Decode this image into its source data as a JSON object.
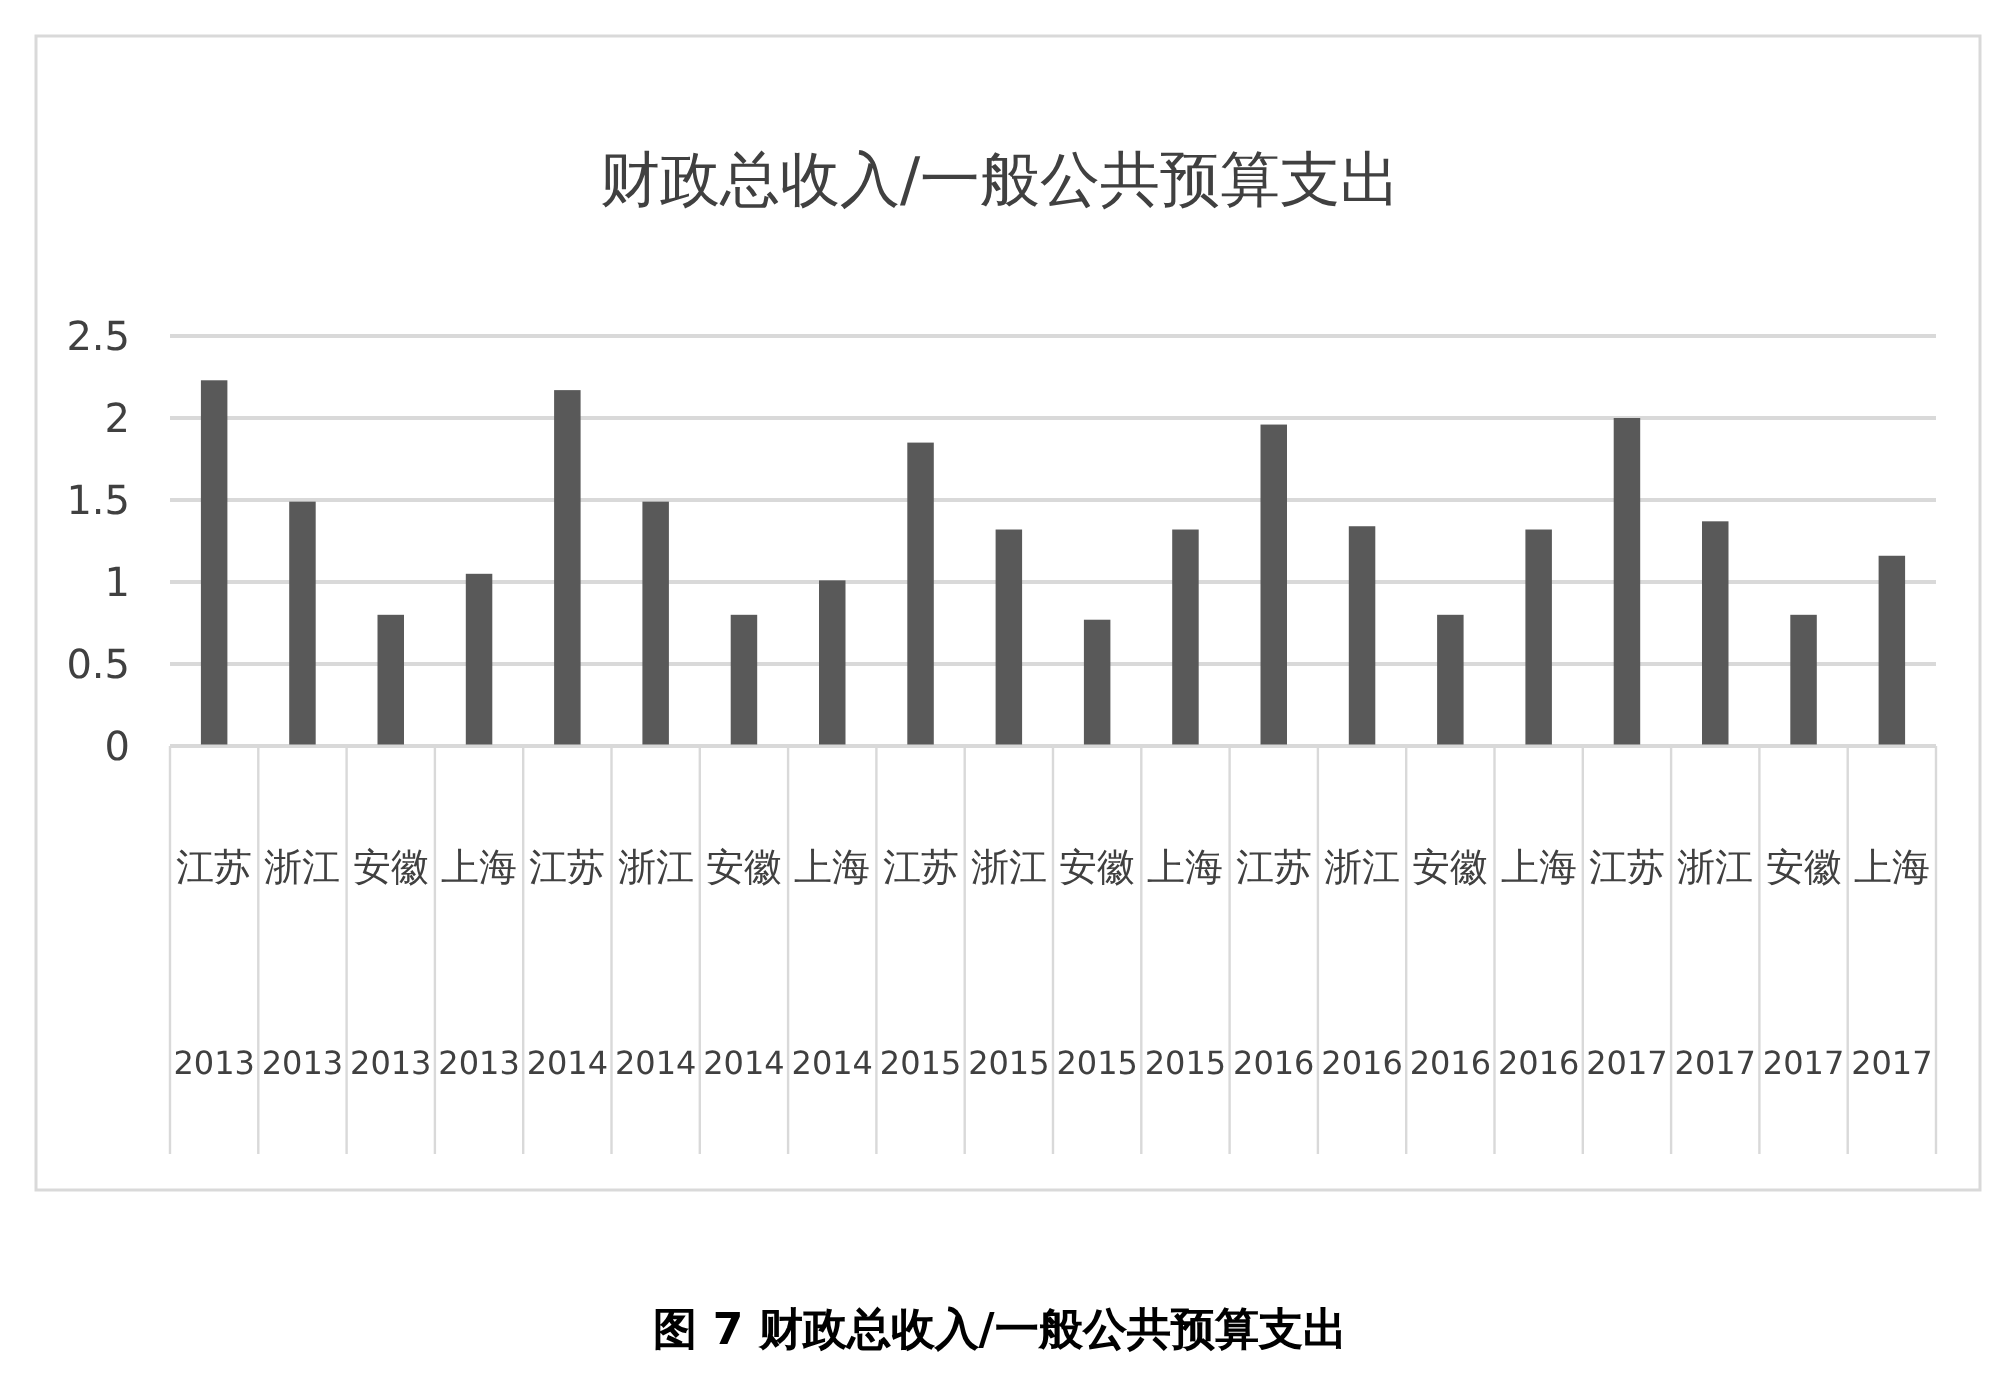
{
  "chart_data": {
    "type": "bar",
    "title": "财政总收入/一般公共预算支出",
    "categories": [
      "江苏 2013",
      "浙江 2013",
      "安徽 2013",
      "上海 2013",
      "江苏 2014",
      "浙江 2014",
      "安徽 2014",
      "上海 2014",
      "江苏 2015",
      "浙江 2015",
      "安徽 2015",
      "上海 2015",
      "江苏 2016",
      "浙江 2016",
      "安徽 2016",
      "上海 2016",
      "江苏 2017",
      "浙江 2017",
      "安徽 2017",
      "上海 2017"
    ],
    "values": [
      2.23,
      1.49,
      0.8,
      1.05,
      2.17,
      1.49,
      0.8,
      1.01,
      1.85,
      1.32,
      0.77,
      1.32,
      1.96,
      1.34,
      0.8,
      1.32,
      2.0,
      1.37,
      0.8,
      1.16
    ],
    "color": "#595959",
    "ylim": [
      0,
      2.5
    ],
    "yticks": [
      0,
      0.5,
      1,
      1.5,
      2,
      2.5
    ],
    "grid": "y",
    "annotations": [
      "图 7   财政总收入/一般公共预算支出"
    ]
  }
}
